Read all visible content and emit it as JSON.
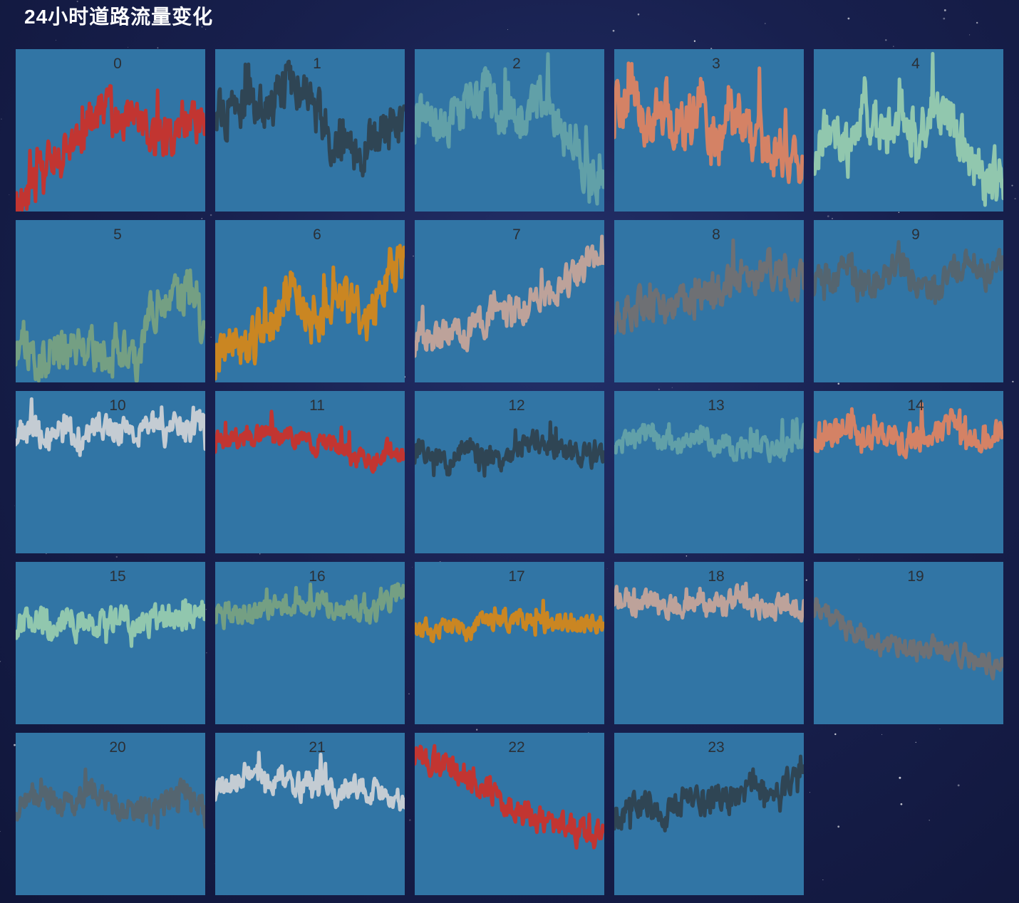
{
  "page": {
    "title": "24小时道路流量变化"
  },
  "colors": {
    "panel_bg": "#3175a5",
    "palette": [
      "#c23531",
      "#2f4554",
      "#61a0a8",
      "#d48265",
      "#91c7ae",
      "#749f83",
      "#ca8622",
      "#bda29a",
      "#6e7074",
      "#546570",
      "#c4ccd3"
    ]
  },
  "chart_data": {
    "type": "line",
    "layout": "small-multiples",
    "title": "24小时道路流量变化",
    "grid": false,
    "y_range": [
      0,
      100
    ],
    "points_per_panel": 240,
    "panels": [
      {
        "label": "0",
        "trend": [
          3,
          15,
          30,
          40,
          50,
          65,
          55,
          58,
          48,
          45,
          58,
          52
        ],
        "amp": 14,
        "seed": 11
      },
      {
        "label": "1",
        "trend": [
          65,
          58,
          72,
          55,
          80,
          75,
          60,
          45,
          38,
          42,
          48,
          55
        ],
        "amp": 16,
        "seed": 23
      },
      {
        "label": "2",
        "trend": [
          55,
          62,
          50,
          66,
          75,
          62,
          55,
          70,
          58,
          45,
          25,
          20
        ],
        "amp": 16,
        "seed": 37
      },
      {
        "label": "3",
        "trend": [
          60,
          72,
          55,
          65,
          50,
          70,
          42,
          58,
          46,
          40,
          35,
          32
        ],
        "amp": 18,
        "seed": 41
      },
      {
        "label": "4",
        "trend": [
          42,
          55,
          38,
          60,
          42,
          65,
          40,
          68,
          58,
          30,
          20,
          22
        ],
        "amp": 18,
        "seed": 53
      },
      {
        "label": "5",
        "trend": [
          22,
          15,
          20,
          20,
          20,
          18,
          25,
          12,
          50,
          45,
          58,
          30
        ],
        "amp": 14,
        "seed": 67
      },
      {
        "label": "6",
        "trend": [
          15,
          25,
          20,
          35,
          55,
          48,
          35,
          60,
          45,
          42,
          70,
          75
        ],
        "amp": 16,
        "seed": 71
      },
      {
        "label": "7",
        "trend": [
          25,
          28,
          32,
          28,
          40,
          46,
          45,
          50,
          55,
          62,
          75,
          70
        ],
        "amp": 11,
        "seed": 83
      },
      {
        "label": "8",
        "trend": [
          40,
          45,
          48,
          43,
          47,
          52,
          55,
          68,
          65,
          72,
          64,
          62
        ],
        "amp": 12,
        "seed": 97
      },
      {
        "label": "9",
        "trend": [
          62,
          64,
          70,
          60,
          66,
          72,
          60,
          55,
          68,
          75,
          68,
          72
        ],
        "amp": 10,
        "seed": 101
      },
      {
        "label": "10",
        "trend": [
          75,
          78,
          70,
          78,
          72,
          80,
          76,
          72,
          78,
          75,
          76,
          80
        ],
        "amp": 10,
        "seed": 113
      },
      {
        "label": "11",
        "trend": [
          68,
          72,
          70,
          76,
          72,
          70,
          68,
          65,
          58,
          55,
          62,
          60
        ],
        "amp": 7,
        "seed": 127
      },
      {
        "label": "12",
        "trend": [
          62,
          58,
          55,
          66,
          60,
          58,
          64,
          70,
          66,
          62,
          60,
          62
        ],
        "amp": 8,
        "seed": 131
      },
      {
        "label": "13",
        "trend": [
          72,
          68,
          74,
          70,
          66,
          72,
          68,
          64,
          68,
          62,
          68,
          72
        ],
        "amp": 8,
        "seed": 139
      },
      {
        "label": "14",
        "trend": [
          72,
          74,
          78,
          68,
          75,
          72,
          70,
          76,
          78,
          70,
          74,
          72
        ],
        "amp": 10,
        "seed": 149
      },
      {
        "label": "15",
        "trend": [
          62,
          64,
          60,
          66,
          62,
          60,
          68,
          60,
          64,
          66,
          68,
          70
        ],
        "amp": 9,
        "seed": 151
      },
      {
        "label": "16",
        "trend": [
          70,
          66,
          68,
          72,
          75,
          72,
          76,
          74,
          72,
          68,
          76,
          84
        ],
        "amp": 8,
        "seed": 163
      },
      {
        "label": "17",
        "trend": [
          62,
          56,
          60,
          58,
          62,
          64,
          66,
          60,
          62,
          64,
          62,
          62
        ],
        "amp": 7,
        "seed": 173
      },
      {
        "label": "18",
        "trend": [
          80,
          74,
          76,
          70,
          72,
          76,
          72,
          80,
          74,
          72,
          74,
          70
        ],
        "amp": 8,
        "seed": 181
      },
      {
        "label": "19",
        "trend": [
          72,
          68,
          58,
          55,
          48,
          50,
          45,
          48,
          44,
          42,
          38,
          35
        ],
        "amp": 7,
        "seed": 191
      },
      {
        "label": "20",
        "trend": [
          55,
          62,
          58,
          55,
          62,
          60,
          52,
          55,
          50,
          60,
          65,
          50
        ],
        "amp": 9,
        "seed": 199
      },
      {
        "label": "21",
        "trend": [
          65,
          70,
          76,
          68,
          74,
          66,
          72,
          62,
          68,
          64,
          62,
          55
        ],
        "amp": 8,
        "seed": 211
      },
      {
        "label": "22",
        "trend": [
          88,
          84,
          80,
          72,
          68,
          60,
          52,
          48,
          45,
          42,
          38,
          35
        ],
        "amp": 9,
        "seed": 223
      },
      {
        "label": "23",
        "trend": [
          48,
          52,
          56,
          50,
          60,
          55,
          62,
          58,
          68,
          62,
          70,
          75
        ],
        "amp": 9,
        "seed": 227
      }
    ]
  }
}
